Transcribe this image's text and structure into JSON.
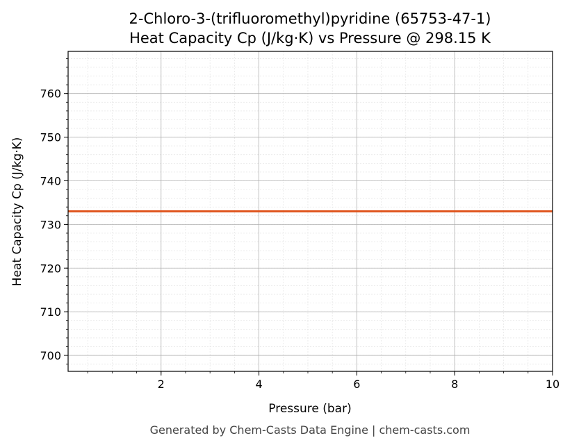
{
  "chart_data": {
    "type": "line",
    "title": "2-Chloro-3-(trifluoromethyl)pyridine (65753-47-1)",
    "subtitle": "Heat Capacity Cp (J/kg·K) vs Pressure @ 298.15 K",
    "xlabel": "Pressure (bar)",
    "ylabel": "Heat Capacity Cp (J/kg·K)",
    "xlim": [
      0.1,
      10
    ],
    "ylim": [
      696.35,
      769.65
    ],
    "xticks": [
      2,
      4,
      6,
      8,
      10
    ],
    "yticks": [
      700,
      710,
      720,
      730,
      740,
      750,
      760
    ],
    "grid": true,
    "series": [
      {
        "x": [
          0.1,
          10
        ],
        "y": [
          733.0,
          733.0
        ],
        "color": "#e0561f"
      }
    ]
  },
  "footer": "Generated by Chem-Casts Data Engine | chem-casts.com"
}
